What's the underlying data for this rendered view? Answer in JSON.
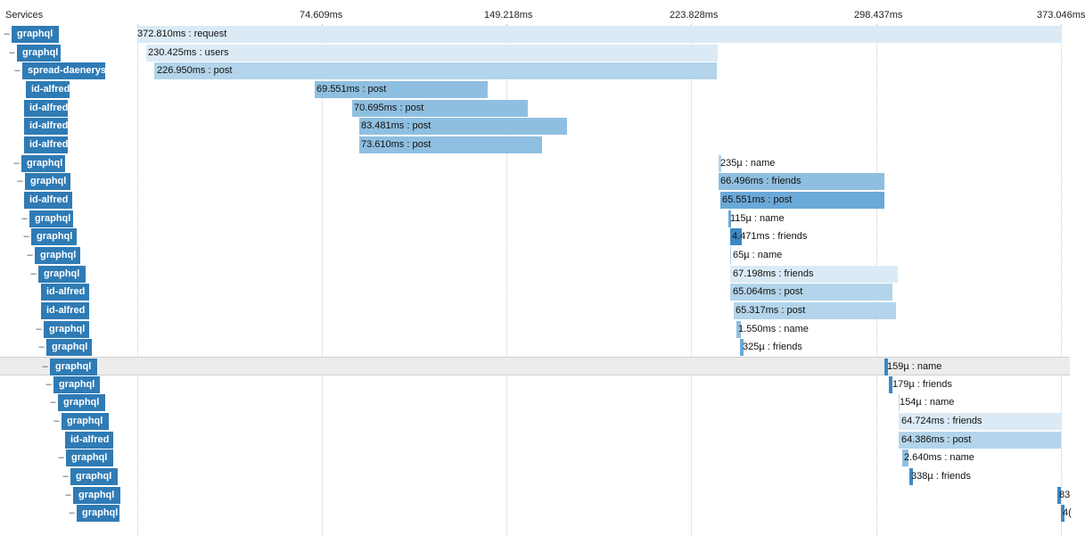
{
  "header": {
    "services_label": "Services",
    "ticks": [
      "74.609ms",
      "149.218ms",
      "223.828ms",
      "298.437ms",
      "373.046ms"
    ]
  },
  "colors": {
    "service_bg": "#2f7bb5",
    "span_pale": "#dbeaf5",
    "span_light": "#b3d4ea",
    "span_mid": "#8fbfe0",
    "span_dark": "#6aa9d8",
    "span_solid": "#3d88c2",
    "highlight_row": "#ececec"
  },
  "rows": [
    {
      "service": "graphql",
      "label": "372.810ms : request"
    },
    {
      "service": "graphql",
      "label": "230.425ms : users"
    },
    {
      "service": "spread-daenerys",
      "label": "226.950ms : post"
    },
    {
      "service": "id-alfred",
      "label": "69.551ms : post"
    },
    {
      "service": "id-alfred",
      "label": "70.695ms : post"
    },
    {
      "service": "id-alfred",
      "label": "83.481ms : post"
    },
    {
      "service": "id-alfred",
      "label": "73.610ms : post"
    },
    {
      "service": "graphql",
      "label": "235µ : name"
    },
    {
      "service": "graphql",
      "label": "66.496ms : friends"
    },
    {
      "service": "id-alfred",
      "label": "65.551ms : post"
    },
    {
      "service": "graphql",
      "label": "115µ : name"
    },
    {
      "service": "graphql",
      "label": "4.471ms : friends"
    },
    {
      "service": "graphql",
      "label": "65µ : name"
    },
    {
      "service": "graphql",
      "label": "67.198ms : friends"
    },
    {
      "service": "id-alfred",
      "label": "65.064ms : post"
    },
    {
      "service": "id-alfred",
      "label": "65.317ms : post"
    },
    {
      "service": "graphql",
      "label": "1.550ms : name"
    },
    {
      "service": "graphql",
      "label": "325µ : friends"
    },
    {
      "service": "graphql",
      "label": "159µ : name"
    },
    {
      "service": "graphql",
      "label": "179µ : friends"
    },
    {
      "service": "graphql",
      "label": "154µ : name"
    },
    {
      "service": "graphql",
      "label": "64.724ms : friends"
    },
    {
      "service": "id-alfred",
      "label": "64.386ms : post"
    },
    {
      "service": "graphql",
      "label": "2.640ms : name"
    },
    {
      "service": "graphql",
      "label": "338µ : friends"
    },
    {
      "service": "graphql",
      "label": "83"
    },
    {
      "service": "graphql",
      "label": "4("
    }
  ]
}
